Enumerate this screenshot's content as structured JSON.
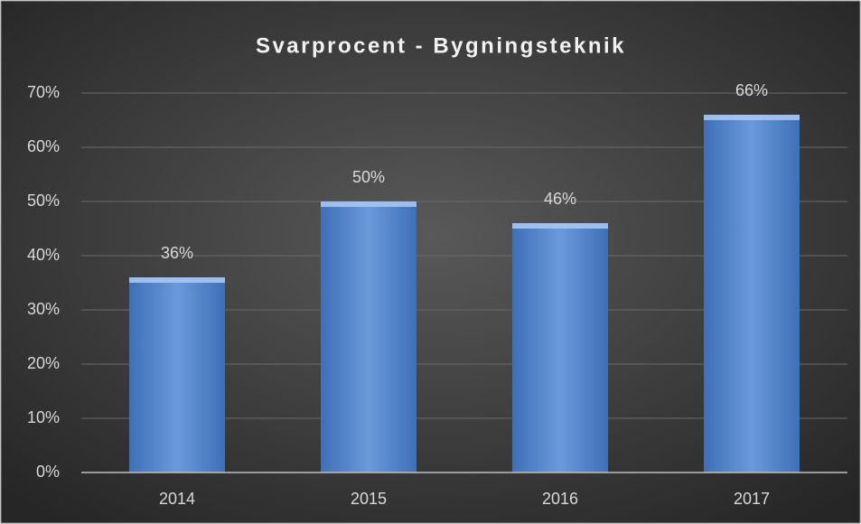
{
  "chart_data": {
    "type": "bar",
    "title": "Svarprocent - Bygningsteknik",
    "categories": [
      "2014",
      "2015",
      "2016",
      "2017"
    ],
    "values": [
      36,
      50,
      46,
      66
    ],
    "value_labels": [
      "36%",
      "50%",
      "46%",
      "66%"
    ],
    "color": "#5a8bd0",
    "ylim": [
      0,
      70
    ],
    "yticks": [
      {
        "value": 0,
        "label": "0%"
      },
      {
        "value": 10,
        "label": "10%"
      },
      {
        "value": 20,
        "label": "20%"
      },
      {
        "value": 30,
        "label": "30%"
      },
      {
        "value": 40,
        "label": "40%"
      },
      {
        "value": 50,
        "label": "50%"
      },
      {
        "value": 60,
        "label": "60%"
      },
      {
        "value": 70,
        "label": "70%"
      }
    ],
    "grid": true
  }
}
